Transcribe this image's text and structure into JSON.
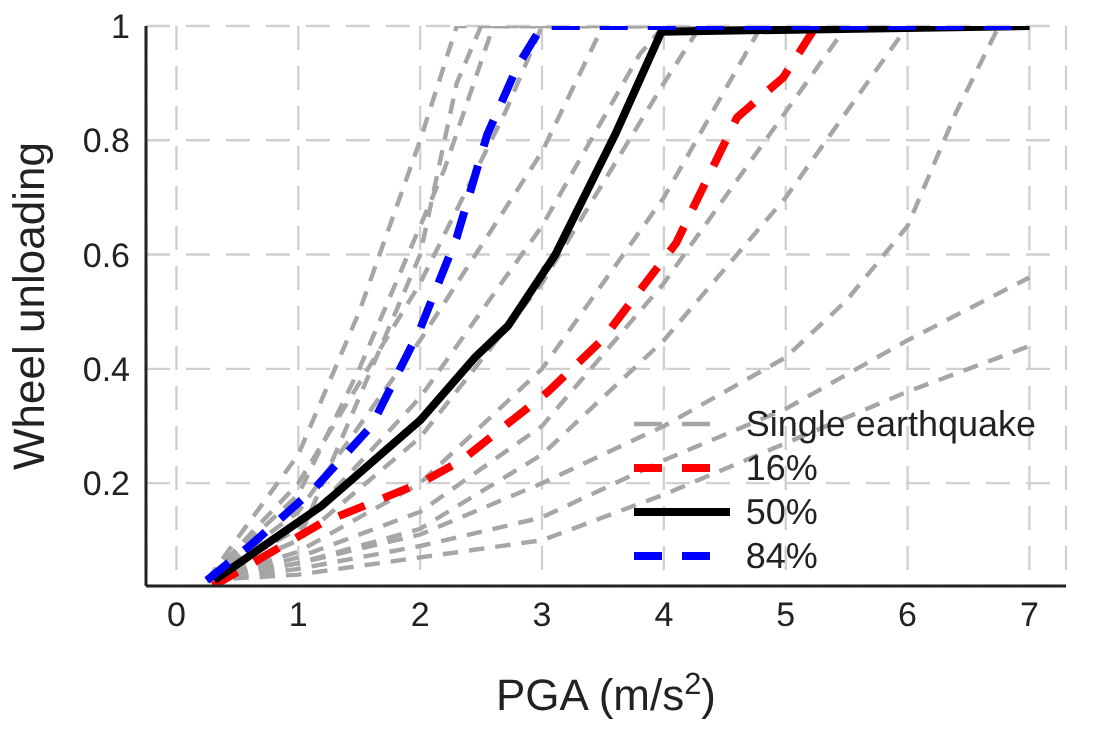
{
  "chart_data": {
    "type": "line",
    "xlabel": "PGA (m/s$^{2}$)",
    "ylabel": "Wheel unloading",
    "xlim": [
      -0.25,
      7.3
    ],
    "xticks": [
      0,
      1,
      2,
      3,
      4,
      5,
      6,
      7
    ],
    "ylim": [
      0.02,
      1
    ],
    "yticks": [
      0.2,
      0.4,
      0.6,
      0.8,
      1
    ],
    "grid": true,
    "legend": "bottom right",
    "marker": "none",
    "series": [
      {
        "name": "Single earthquake",
        "color": "#a6a6a6",
        "line_style": "dashed",
        "x": [
          0.25,
          1,
          1.5,
          2,
          2.3,
          7
        ],
        "values": [
          0.03,
          0.25,
          0.5,
          0.8,
          1,
          1
        ]
      },
      {
        "color": "#a6a6a6",
        "line_style": "dashed",
        "x": [
          0.25,
          1,
          1.5,
          2,
          2.3,
          2.5,
          7
        ],
        "values": [
          0.03,
          0.1,
          0.35,
          0.6,
          0.9,
          1,
          1
        ]
      },
      {
        "color": "#a6a6a6",
        "line_style": "dashed",
        "x": [
          0.25,
          1,
          1.5,
          2.2,
          2.6,
          7
        ],
        "values": [
          0.03,
          0.18,
          0.4,
          0.75,
          1,
          1
        ]
      },
      {
        "color": "#a6a6a6",
        "line_style": "dashed",
        "x": [
          0.25,
          1,
          2,
          2.7,
          3,
          7
        ],
        "values": [
          0.03,
          0.2,
          0.55,
          0.85,
          1,
          1
        ]
      },
      {
        "color": "#a6a6a6",
        "line_style": "dashed",
        "x": [
          0.25,
          1,
          2,
          3,
          3.5,
          7
        ],
        "values": [
          0.03,
          0.15,
          0.45,
          0.78,
          1,
          1
        ]
      },
      {
        "color": "#a6a6a6",
        "line_style": "dashed",
        "x": [
          0.25,
          1,
          2,
          3,
          3.8,
          4,
          7
        ],
        "values": [
          0.03,
          0.12,
          0.35,
          0.65,
          0.95,
          1,
          1
        ]
      },
      {
        "color": "#a6a6a6",
        "line_style": "dashed",
        "x": [
          0.25,
          1,
          2,
          3,
          4,
          4.3,
          7
        ],
        "values": [
          0.03,
          0.1,
          0.28,
          0.55,
          0.9,
          1,
          1
        ]
      },
      {
        "color": "#a6a6a6",
        "line_style": "dashed",
        "x": [
          0.25,
          1,
          2,
          3,
          4,
          4.8,
          7
        ],
        "values": [
          0.03,
          0.08,
          0.2,
          0.4,
          0.7,
          1,
          1
        ]
      },
      {
        "color": "#a6a6a6",
        "line_style": "dashed",
        "x": [
          0.25,
          1,
          2,
          3,
          4,
          5,
          5.5,
          7
        ],
        "values": [
          0.03,
          0.07,
          0.15,
          0.3,
          0.55,
          0.85,
          1,
          1
        ]
      },
      {
        "color": "#a6a6a6",
        "line_style": "dashed",
        "x": [
          0.25,
          1,
          2,
          3,
          4,
          5,
          6
        ],
        "values": [
          0.03,
          0.06,
          0.12,
          0.25,
          0.45,
          0.7,
          1
        ]
      },
      {
        "color": "#a6a6a6",
        "line_style": "dashed",
        "x": [
          0.25,
          1,
          2,
          3,
          4,
          5,
          5.5,
          6,
          6.4,
          6.75
        ],
        "values": [
          0.03,
          0.06,
          0.11,
          0.2,
          0.3,
          0.42,
          0.52,
          0.65,
          0.85,
          1
        ]
      },
      {
        "color": "#a6a6a6",
        "line_style": "dashed",
        "x": [
          0.25,
          1,
          2,
          3,
          4,
          5,
          6,
          7
        ],
        "values": [
          0.03,
          0.05,
          0.09,
          0.14,
          0.24,
          0.33,
          0.45,
          0.56
        ]
      },
      {
        "color": "#a6a6a6",
        "line_style": "dashed",
        "x": [
          0.25,
          1,
          2,
          3,
          4,
          5,
          6,
          7
        ],
        "values": [
          0.03,
          0.04,
          0.07,
          0.1,
          0.18,
          0.27,
          0.36,
          0.44
        ]
      },
      {
        "name": "16%",
        "color": "#ff0000",
        "line_style": "dashed",
        "x": [
          0.3,
          1.19,
          2,
          2.34,
          3.05,
          3.49,
          4.1,
          4.6,
          4.98,
          5.25
        ],
        "values": [
          0.02,
          0.13,
          0.2,
          0.24,
          0.36,
          0.45,
          0.62,
          0.84,
          0.91,
          1
        ]
      },
      {
        "name": "50%",
        "color": "#000000",
        "line_style": "solid",
        "x": [
          0.31,
          1.19,
          2,
          2.45,
          2.72,
          3.11,
          3.6,
          3.98,
          7
        ],
        "values": [
          0.03,
          0.16,
          0.31,
          0.42,
          0.475,
          0.6,
          0.81,
          0.99,
          1
        ]
      },
      {
        "name": "84%",
        "color": "#0000ff",
        "line_style": "dashed",
        "x": [
          0.25,
          0.6,
          1.13,
          1.6,
          2,
          2.3,
          2.55,
          2.8,
          3,
          7
        ],
        "values": [
          0.03,
          0.09,
          0.19,
          0.3,
          0.47,
          0.63,
          0.81,
          0.93,
          1,
          1
        ]
      }
    ]
  }
}
